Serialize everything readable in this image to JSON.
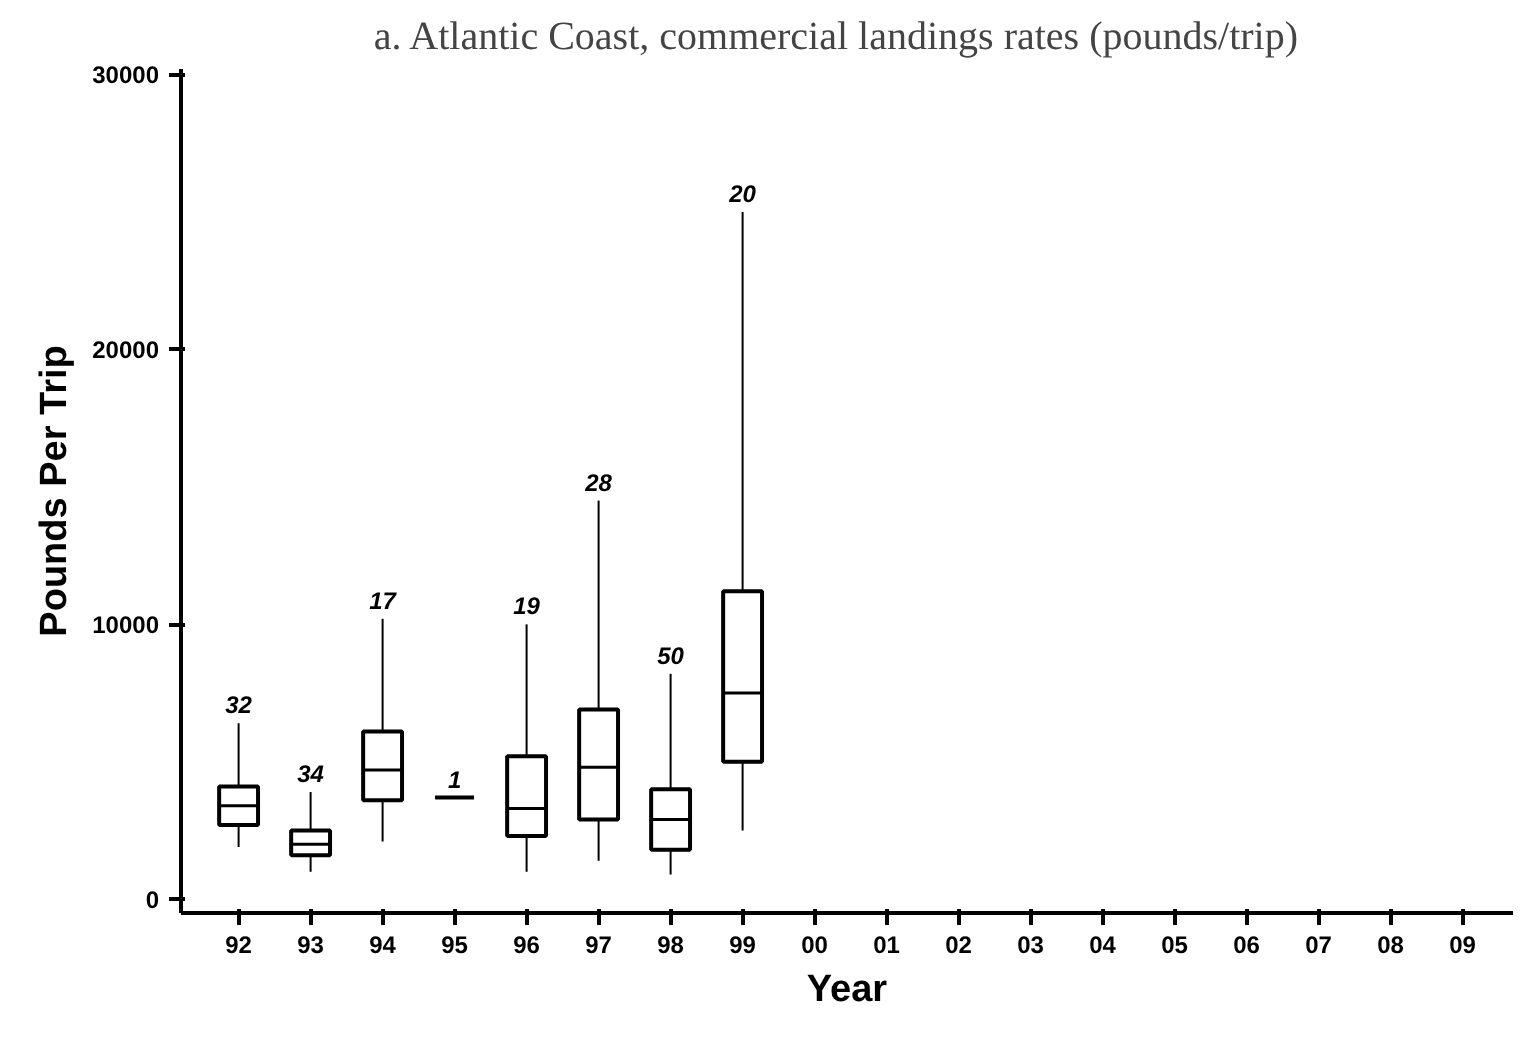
{
  "chart_data": {
    "type": "box",
    "title": "a.   Atlantic Coast, commercial landings rates (pounds/trip)",
    "xlabel": "Year",
    "ylabel": "Pounds Per Trip",
    "categories": [
      "92",
      "93",
      "94",
      "95",
      "96",
      "97",
      "98",
      "99",
      "00",
      "01",
      "02",
      "03",
      "04",
      "05",
      "06",
      "07",
      "08",
      "09"
    ],
    "boxes": [
      {
        "low": 1900,
        "q1": 2700,
        "median": 3400,
        "q3": 4100,
        "high": 6400
      },
      {
        "low": 1000,
        "q1": 1600,
        "median": 2000,
        "q3": 2500,
        "high": 3900
      },
      {
        "low": 2100,
        "q1": 3600,
        "median": 4700,
        "q3": 6100,
        "high": 10200
      },
      {
        "low": 3700,
        "q1": 3700,
        "median": 3700,
        "q3": 3700,
        "high": 3700
      },
      {
        "low": 1000,
        "q1": 2300,
        "median": 3300,
        "q3": 5200,
        "high": 10000
      },
      {
        "low": 1400,
        "q1": 2900,
        "median": 4800,
        "q3": 6900,
        "high": 14500
      },
      {
        "low": 900,
        "q1": 1800,
        "median": 2900,
        "q3": 4000,
        "high": 8200
      },
      {
        "low": 2500,
        "q1": 5000,
        "median": 7500,
        "q3": 11200,
        "high": 25000
      },
      null,
      null,
      null,
      null,
      null,
      null,
      null,
      null,
      null,
      null
    ],
    "color": "#000000",
    "ylim": [
      -500,
      30200
    ],
    "yticks": [
      0,
      10000,
      20000,
      30000
    ],
    "grid": false,
    "annotations": [
      {
        "text": "32",
        "x": "92",
        "y": 6400
      },
      {
        "text": "34",
        "x": "93",
        "y": 3900
      },
      {
        "text": "17",
        "x": "94",
        "y": 10200
      },
      {
        "text": "1",
        "x": "95",
        "y": 3700
      },
      {
        "text": "19",
        "x": "96",
        "y": 10000
      },
      {
        "text": "28",
        "x": "97",
        "y": 14500
      },
      {
        "text": "50",
        "x": "98",
        "y": 8200
      },
      {
        "text": "20",
        "x": "99",
        "y": 25000
      }
    ]
  }
}
